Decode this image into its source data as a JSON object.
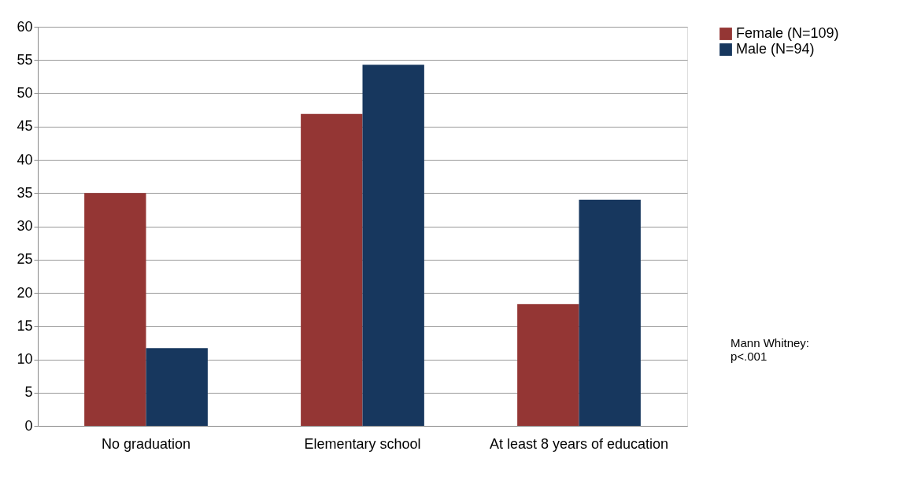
{
  "chart_data": {
    "type": "bar",
    "categories": [
      "No graduation",
      "Elementary school",
      "At least 8 years of education"
    ],
    "series": [
      {
        "name": "Female (N=109)",
        "color": "#943634",
        "values": [
          35,
          46.9,
          18.3
        ]
      },
      {
        "name": "Male (N=94)",
        "color": "#17375e",
        "values": [
          11.7,
          54.3,
          34.0
        ]
      }
    ],
    "ylim": [
      0,
      60
    ],
    "yticks": [
      0,
      5,
      10,
      15,
      20,
      25,
      30,
      35,
      40,
      45,
      50,
      55,
      60
    ],
    "grid": "y",
    "legend": "right",
    "annotations": [
      "Mann Whitney:\np<.001"
    ]
  }
}
